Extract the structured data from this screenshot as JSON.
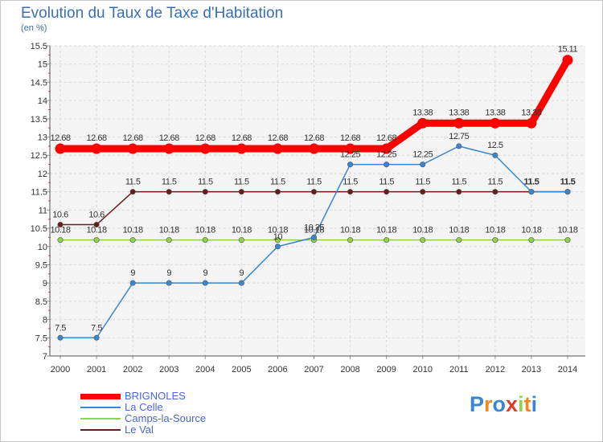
{
  "chart_data": {
    "type": "line",
    "title": "Evolution du Taux de Taxe d'Habitation",
    "subtitle": "(en %)",
    "xlabel": "",
    "ylabel": "",
    "x": [
      "2000",
      "2001",
      "2002",
      "2003",
      "2004",
      "2005",
      "2006",
      "2007",
      "2008",
      "2009",
      "2010",
      "2011",
      "2012",
      "2013",
      "2014"
    ],
    "ylim": [
      7,
      15.5
    ],
    "yticks": [
      "7",
      "7.5",
      "8",
      "8.5",
      "9",
      "9.5",
      "10",
      "10.5",
      "11",
      "11.5",
      "12",
      "12.5",
      "13",
      "13.5",
      "14",
      "14.5",
      "15",
      "15.5"
    ],
    "series": [
      {
        "name": "BRIGNOLES",
        "color": "#ff0000",
        "values": [
          12.68,
          12.68,
          12.68,
          12.68,
          12.68,
          12.68,
          12.68,
          12.68,
          12.68,
          12.68,
          13.38,
          13.38,
          13.38,
          13.38,
          15.11
        ],
        "labels": [
          "12.68",
          "12.68",
          "12.68",
          "12.68",
          "12.68",
          "12.68",
          "12.68",
          "12.68",
          "12.68",
          "12.68",
          "13.38",
          "13.38",
          "13.38",
          "13.38",
          "15.11"
        ]
      },
      {
        "name": "La Celle",
        "color": "#3a86d0",
        "values": [
          7.5,
          7.5,
          9,
          9,
          9,
          9,
          10,
          10.25,
          12.25,
          12.25,
          12.25,
          12.75,
          12.5,
          11.5,
          11.5
        ],
        "labels": [
          "7.5",
          "7.5",
          "9",
          "9",
          "9",
          "9",
          "10",
          "10.25",
          "12.25",
          "12.25",
          "12.25",
          "12.75",
          "12.5",
          "11.5",
          "11.5"
        ]
      },
      {
        "name": "Camps-la-Source",
        "color": "#8ed44a",
        "values": [
          10.18,
          10.18,
          10.18,
          10.18,
          10.18,
          10.18,
          10.18,
          10.18,
          10.18,
          10.18,
          10.18,
          10.18,
          10.18,
          10.18,
          10.18
        ],
        "labels": [
          "10.18",
          "10.18",
          "10.18",
          "10.18",
          "10.18",
          "10.18",
          "10.18",
          "10.18",
          "10.18",
          "10.18",
          "10.18",
          "10.18",
          "10.18",
          "10.18",
          "10.18"
        ]
      },
      {
        "name": "Le Val",
        "color": "#6b1a1a",
        "values": [
          10.6,
          10.6,
          11.5,
          11.5,
          11.5,
          11.5,
          11.5,
          11.5,
          11.5,
          11.5,
          11.5,
          11.5,
          11.5,
          11.5,
          11.5
        ],
        "labels": [
          "10.6",
          "10.6",
          "11.5",
          "11.5",
          "11.5",
          "11.5",
          "11.5",
          "11.5",
          "11.5",
          "11.5",
          "11.5",
          "11.5",
          "11.5",
          "11.5",
          "11.5"
        ]
      }
    ]
  },
  "legend": {
    "items": [
      {
        "name": "BRIGNOLES",
        "color": "#ff0000"
      },
      {
        "name": "La Celle",
        "color": "#3a86d0"
      },
      {
        "name": "Camps-la-Source",
        "color": "#8ed44a"
      },
      {
        "name": "Le Val",
        "color": "#6b1a1a"
      }
    ]
  },
  "logo": {
    "letters": [
      "P",
      "r",
      "o",
      "x",
      "i",
      "t",
      "i"
    ],
    "colors": [
      "#3a86d0",
      "#f08a1c",
      "#3a86d0",
      "#e23b2a",
      "#8ed44a",
      "#f08a1c",
      "#3a86d0"
    ]
  }
}
